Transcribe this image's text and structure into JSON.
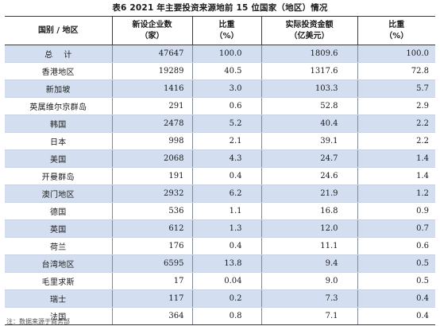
{
  "title": "表6  2021 年主要投资来源地前 15 位国家（地区）情况",
  "headers": {
    "region": "国别 / 地区",
    "enterprises_line1": "新设企业数",
    "enterprises_line2": "（家）",
    "share1_line1": "比重",
    "share1_line2": "（%）",
    "investment_line1": "实际投资金额",
    "investment_line2": "（亿美元）",
    "share2_line1": "比重",
    "share2_line2": "（%）"
  },
  "rows": [
    {
      "region": "总计",
      "enterprises": "47647",
      "share1": "100.0",
      "investment": "1809.6",
      "share2": "100.0"
    },
    {
      "region": "香港地区",
      "enterprises": "19289",
      "share1": "40.5",
      "investment": "1317.6",
      "share2": "72.8"
    },
    {
      "region": "新加坡",
      "enterprises": "1416",
      "share1": "3.0",
      "investment": "103.3",
      "share2": "5.7"
    },
    {
      "region": "英属维尔京群岛",
      "enterprises": "291",
      "share1": "0.6",
      "investment": "52.8",
      "share2": "2.9"
    },
    {
      "region": "韩国",
      "enterprises": "2478",
      "share1": "5.2",
      "investment": "40.4",
      "share2": "2.2"
    },
    {
      "region": "日本",
      "enterprises": "998",
      "share1": "2.1",
      "investment": "39.1",
      "share2": "2.2"
    },
    {
      "region": "美国",
      "enterprises": "2068",
      "share1": "4.3",
      "investment": "24.7",
      "share2": "1.4"
    },
    {
      "region": "开曼群岛",
      "enterprises": "191",
      "share1": "0.4",
      "investment": "24.6",
      "share2": "1.4"
    },
    {
      "region": "澳门地区",
      "enterprises": "2932",
      "share1": "6.2",
      "investment": "21.9",
      "share2": "1.2"
    },
    {
      "region": "德国",
      "enterprises": "536",
      "share1": "1.1",
      "investment": "16.8",
      "share2": "0.9"
    },
    {
      "region": "英国",
      "enterprises": "612",
      "share1": "1.3",
      "investment": "12.0",
      "share2": "0.7"
    },
    {
      "region": "荷兰",
      "enterprises": "176",
      "share1": "0.4",
      "investment": "11.1",
      "share2": "0.6"
    },
    {
      "region": "台湾地区",
      "enterprises": "6595",
      "share1": "13.8",
      "investment": "9.4",
      "share2": "0.5"
    },
    {
      "region": "毛里求斯",
      "enterprises": "17",
      "share1": "0.04",
      "investment": "9.0",
      "share2": "0.5"
    },
    {
      "region": "瑞士",
      "enterprises": "117",
      "share1": "0.2",
      "investment": "7.3",
      "share2": "0.4"
    },
    {
      "region": "法国",
      "enterprises": "364",
      "share1": "0.8",
      "investment": "7.1",
      "share2": "0.4"
    }
  ],
  "footnote": "注：数据来源于商务部"
}
